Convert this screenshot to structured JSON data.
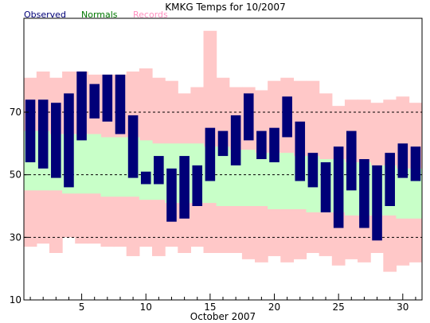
{
  "chart_data": {
    "type": "bar",
    "title": "KMKG Temps for 10/2007",
    "xlabel": "October 2007",
    "ylabel": "",
    "xlim": [
      0.5,
      31.5
    ],
    "ylim": [
      10,
      100
    ],
    "y_ticks": [
      10,
      30,
      50,
      70
    ],
    "x_ticks": [
      5,
      10,
      15,
      20,
      25,
      30
    ],
    "gridlines_dashed_at": [
      30,
      50,
      70
    ],
    "legend_position": "top-left",
    "series": [
      {
        "name": "Records",
        "kind": "range",
        "color": "#ffc8c8",
        "days": [
          1,
          2,
          3,
          4,
          5,
          6,
          7,
          8,
          9,
          10,
          11,
          12,
          13,
          14,
          15,
          16,
          17,
          18,
          19,
          20,
          21,
          22,
          23,
          24,
          25,
          26,
          27,
          28,
          29,
          30,
          31
        ],
        "highs": [
          81,
          83,
          81,
          83,
          83,
          82,
          82,
          82,
          83,
          84,
          81,
          80,
          76,
          78,
          96,
          81,
          78,
          78,
          77,
          80,
          81,
          80,
          80,
          76,
          72,
          74,
          74,
          73,
          74,
          75,
          73
        ],
        "lows": [
          27,
          28,
          25,
          30,
          28,
          28,
          27,
          27,
          24,
          27,
          24,
          27,
          25,
          27,
          25,
          25,
          25,
          23,
          22,
          24,
          22,
          23,
          25,
          24,
          21,
          23,
          22,
          25,
          19,
          21,
          22
        ]
      },
      {
        "name": "Normals",
        "kind": "range",
        "color": "#c8ffc8",
        "days": [
          1,
          2,
          3,
          4,
          5,
          6,
          7,
          8,
          9,
          10,
          11,
          12,
          13,
          14,
          15,
          16,
          17,
          18,
          19,
          20,
          21,
          22,
          23,
          24,
          25,
          26,
          27,
          28,
          29,
          30,
          31
        ],
        "highs": [
          64,
          64,
          63,
          63,
          63,
          63,
          62,
          62,
          62,
          61,
          60,
          60,
          60,
          60,
          59,
          59,
          58,
          58,
          57,
          57,
          57,
          56,
          56,
          55,
          55,
          54,
          54,
          53,
          53,
          52,
          52
        ],
        "lows": [
          45,
          45,
          45,
          44,
          44,
          44,
          43,
          43,
          43,
          42,
          42,
          41,
          41,
          41,
          41,
          40,
          40,
          40,
          40,
          39,
          39,
          39,
          38,
          38,
          38,
          37,
          37,
          37,
          37,
          36,
          36
        ]
      },
      {
        "name": "Observed",
        "kind": "range",
        "color": "#000078",
        "days": [
          1,
          2,
          3,
          4,
          5,
          6,
          7,
          8,
          9,
          10,
          11,
          12,
          13,
          14,
          15,
          16,
          17,
          18,
          19,
          20,
          21,
          22,
          23,
          24,
          25,
          26,
          27,
          28,
          29,
          30,
          31
        ],
        "highs": [
          74,
          74,
          73,
          76,
          83,
          79,
          82,
          82,
          69,
          51,
          56,
          52,
          56,
          53,
          65,
          64,
          69,
          76,
          64,
          65,
          75,
          67,
          57,
          54,
          59,
          64,
          55,
          53,
          57,
          60,
          59
        ],
        "lows": [
          54,
          52,
          49,
          46,
          61,
          68,
          67,
          63,
          49,
          47,
          47,
          35,
          36,
          40,
          48,
          56,
          53,
          61,
          55,
          54,
          62,
          48,
          46,
          38,
          33,
          45,
          33,
          29,
          40,
          49,
          48
        ]
      }
    ]
  },
  "colors": {
    "observed_label": "#000078",
    "normals_label": "#007800",
    "records_label": "#ff8fbf"
  }
}
